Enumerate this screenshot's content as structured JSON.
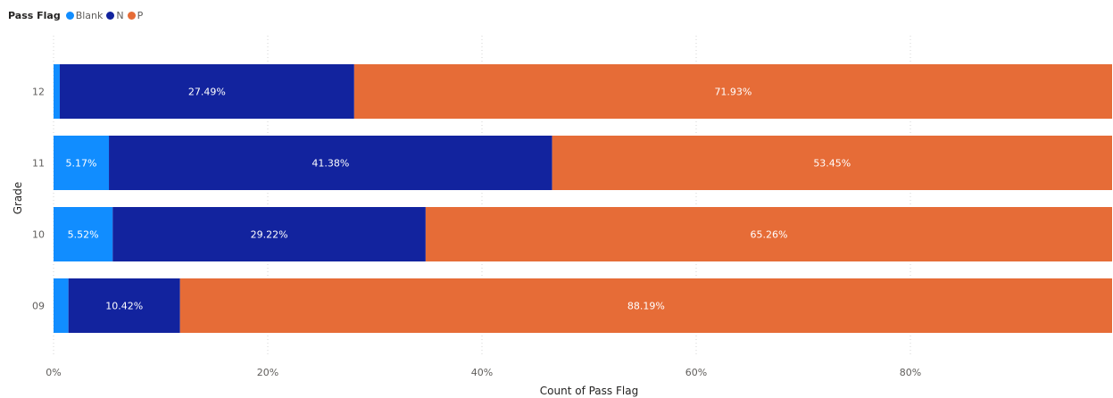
{
  "legend": {
    "title": "Pass Flag",
    "items": [
      {
        "label": "Blank",
        "color": "#118DFF"
      },
      {
        "label": "N",
        "color": "#12239E"
      },
      {
        "label": "P",
        "color": "#E66C37"
      }
    ]
  },
  "chart_data": {
    "type": "bar",
    "orientation": "horizontal",
    "stacked": "100%",
    "xlabel": "Count of Pass Flag",
    "ylabel": "Grade",
    "x_ticks": [
      "0%",
      "20%",
      "40%",
      "60%",
      "80%"
    ],
    "xlim": [
      0,
      100
    ],
    "grid": "vertical dotted",
    "legend_position": "top-left",
    "categories": [
      "12",
      "11",
      "10",
      "09"
    ],
    "series": [
      {
        "name": "Blank",
        "color": "#118DFF",
        "values": [
          0.58,
          5.17,
          5.52,
          1.39
        ],
        "labels": [
          "",
          "5.17%",
          "5.52%",
          ""
        ]
      },
      {
        "name": "N",
        "color": "#12239E",
        "values": [
          27.49,
          41.38,
          29.22,
          10.42
        ],
        "labels": [
          "27.49%",
          "41.38%",
          "29.22%",
          "10.42%"
        ]
      },
      {
        "name": "P",
        "color": "#E66C37",
        "values": [
          71.93,
          53.45,
          65.26,
          88.19
        ],
        "labels": [
          "71.93%",
          "53.45%",
          "65.26%",
          "88.19%"
        ]
      }
    ]
  }
}
